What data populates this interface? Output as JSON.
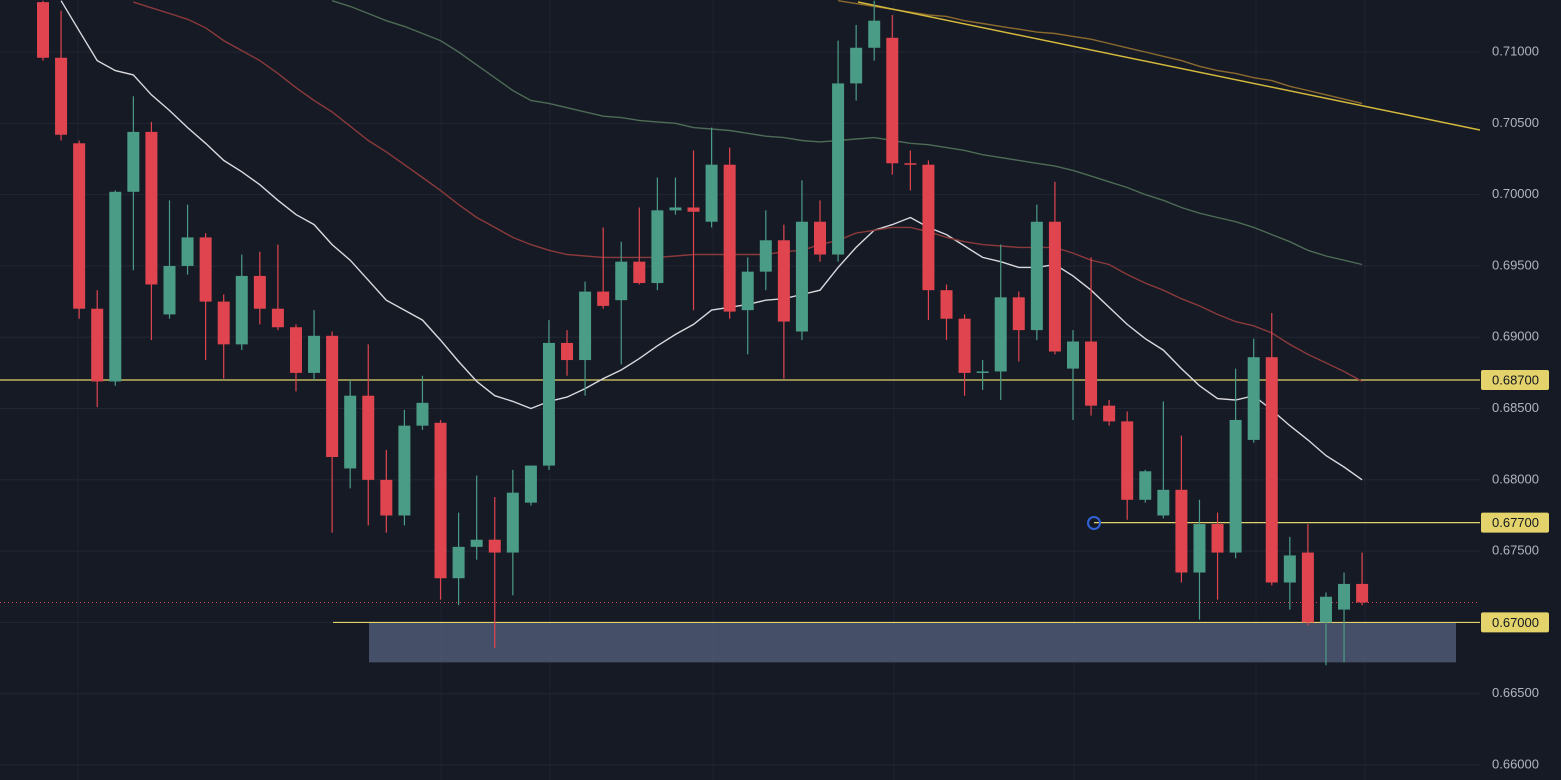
{
  "chart_data": {
    "type": "candlestick",
    "up_color": "#4b9c86",
    "down_color": "#e0454f",
    "grid": true,
    "ylim": [
      0.65895,
      0.71365
    ],
    "yticks": [
      {
        "value": 0.66,
        "label": "0.66000"
      },
      {
        "value": 0.665,
        "label": "0.66500"
      },
      {
        "value": 0.67,
        "label": "0.67000"
      },
      {
        "value": 0.675,
        "label": "0.67500"
      },
      {
        "value": 0.68,
        "label": "0.68000"
      },
      {
        "value": 0.685,
        "label": "0.68500"
      },
      {
        "value": 0.69,
        "label": "0.69000"
      },
      {
        "value": 0.695,
        "label": "0.69500"
      },
      {
        "value": 0.7,
        "label": "0.70000"
      },
      {
        "value": 0.705,
        "label": "0.70500"
      },
      {
        "value": 0.71,
        "label": "0.71000"
      }
    ],
    "open": [
      0.7135,
      0.7096,
      0.7036,
      0.692,
      0.6869,
      0.7002,
      0.7044,
      0.6916,
      0.695,
      0.697,
      0.6925,
      0.6895,
      0.6943,
      0.692,
      0.6907,
      0.6875,
      0.6901,
      0.6808,
      0.6859,
      0.68,
      0.6775,
      0.6838,
      0.684,
      0.6731,
      0.6753,
      0.6758,
      0.6749,
      0.6784,
      0.681,
      0.6896,
      0.6884,
      0.6932,
      0.6926,
      0.6953,
      0.6938,
      0.6989,
      0.6991,
      0.6981,
      0.7021,
      0.6919,
      0.6946,
      0.6968,
      0.6904,
      0.6981,
      0.6958,
      0.7078,
      0.7103,
      0.711,
      0.7022,
      0.7021,
      0.6933,
      0.6913,
      0.6875,
      0.6876,
      0.6928,
      0.6905,
      0.6981,
      0.6878,
      0.6897,
      0.6852,
      0.6841,
      0.6786,
      0.6775,
      0.6793,
      0.6735,
      0.6769,
      0.6749,
      0.6828,
      0.6886,
      0.6728,
      0.6749,
      0.67,
      0.6709,
      0.6727
    ],
    "high": [
      0.7136,
      0.7129,
      0.7038,
      0.6933,
      0.7003,
      0.7069,
      0.7051,
      0.6996,
      0.6993,
      0.6973,
      0.693,
      0.6958,
      0.696,
      0.6965,
      0.6909,
      0.6919,
      0.6904,
      0.687,
      0.6895,
      0.6821,
      0.6849,
      0.6873,
      0.6842,
      0.6777,
      0.6803,
      0.6788,
      0.6807,
      0.681,
      0.6912,
      0.6905,
      0.6939,
      0.6977,
      0.6967,
      0.6991,
      0.7012,
      0.7012,
      0.7031,
      0.7047,
      0.7033,
      0.6956,
      0.6989,
      0.6979,
      0.701,
      0.6996,
      0.7108,
      0.7119,
      0.7136,
      0.7126,
      0.7031,
      0.7024,
      0.6937,
      0.6916,
      0.6884,
      0.6965,
      0.6932,
      0.6993,
      0.7009,
      0.6905,
      0.6956,
      0.6856,
      0.6848,
      0.6807,
      0.6855,
      0.6831,
      0.6786,
      0.6777,
      0.6878,
      0.6899,
      0.6917,
      0.676,
      0.6769,
      0.6721,
      0.6735,
      0.6749
    ],
    "low": [
      0.7094,
      0.7038,
      0.6913,
      0.6851,
      0.6866,
      0.6947,
      0.6898,
      0.6913,
      0.6944,
      0.6884,
      0.6871,
      0.6891,
      0.6909,
      0.6905,
      0.6862,
      0.687,
      0.6763,
      0.6794,
      0.6768,
      0.6763,
      0.6768,
      0.6835,
      0.6716,
      0.6712,
      0.6744,
      0.6682,
      0.6719,
      0.6782,
      0.6807,
      0.6873,
      0.6859,
      0.692,
      0.6881,
      0.6937,
      0.6933,
      0.6986,
      0.6919,
      0.6977,
      0.6913,
      0.6888,
      0.6933,
      0.6871,
      0.6898,
      0.6953,
      0.6953,
      0.7066,
      0.7094,
      0.7014,
      0.7003,
      0.6912,
      0.6898,
      0.6859,
      0.6863,
      0.6856,
      0.6883,
      0.6898,
      0.6888,
      0.6842,
      0.6845,
      0.6838,
      0.6772,
      0.6784,
      0.6773,
      0.6728,
      0.6702,
      0.6716,
      0.6745,
      0.6826,
      0.6726,
      0.6709,
      0.6698,
      0.667,
      0.6672,
      0.6712
    ],
    "close": [
      0.7096,
      0.7042,
      0.692,
      0.6869,
      0.7002,
      0.7044,
      0.6937,
      0.695,
      0.697,
      0.6925,
      0.6895,
      0.6943,
      0.692,
      0.6907,
      0.6875,
      0.6901,
      0.6816,
      0.6859,
      0.68,
      0.6775,
      0.6838,
      0.6854,
      0.6731,
      0.6753,
      0.6758,
      0.6749,
      0.6791,
      0.681,
      0.6896,
      0.6884,
      0.6932,
      0.6922,
      0.6953,
      0.6938,
      0.6989,
      0.6991,
      0.6988,
      0.7021,
      0.6918,
      0.6946,
      0.6968,
      0.6911,
      0.6981,
      0.6958,
      0.7078,
      0.7103,
      0.7122,
      0.7022,
      0.7021,
      0.6933,
      0.6913,
      0.6875,
      0.6876,
      0.6928,
      0.6905,
      0.6981,
      0.689,
      0.6897,
      0.6852,
      0.6841,
      0.6786,
      0.6806,
      0.6793,
      0.6735,
      0.6769,
      0.6749,
      0.6842,
      0.6886,
      0.6728,
      0.6747,
      0.67,
      0.6718,
      0.6727,
      0.6714
    ],
    "overlays": [
      {
        "color": "#d9d9de",
        "values": [
          null,
          0.7136,
          0.7115,
          0.7094,
          0.7087,
          0.7084,
          0.707,
          0.7059,
          0.7047,
          0.7036,
          0.7024,
          0.7016,
          0.7007,
          0.6996,
          0.6986,
          0.6979,
          0.6965,
          0.6954,
          0.694,
          0.6926,
          0.6919,
          0.6912,
          0.6898,
          0.6883,
          0.6869,
          0.6859,
          0.6855,
          0.685,
          0.6855,
          0.6858,
          0.6864,
          0.6871,
          0.6877,
          0.6885,
          0.6894,
          0.6902,
          0.6909,
          0.6919,
          0.6921,
          0.6923,
          0.6926,
          0.6927,
          0.693,
          0.6933,
          0.6949,
          0.6963,
          0.6975,
          0.6979,
          0.6984,
          0.6977,
          0.6972,
          0.6964,
          0.6956,
          0.6953,
          0.6949,
          0.6949,
          0.6951,
          0.6943,
          0.6933,
          0.6921,
          0.6909,
          0.6899,
          0.6891,
          0.6878,
          0.6866,
          0.6857,
          0.6856,
          0.6859,
          0.6849,
          0.6838,
          0.6828,
          0.6817,
          0.6809,
          0.68
        ]
      },
      {
        "color": "#8a3a3a",
        "values": [
          null,
          null,
          null,
          null,
          null,
          0.7135,
          0.7131,
          0.7127,
          0.7123,
          0.7117,
          0.7108,
          0.7101,
          0.7094,
          0.7085,
          0.7075,
          0.7066,
          0.7058,
          0.7048,
          0.7038,
          0.703,
          0.7021,
          0.7012,
          0.7003,
          0.6993,
          0.6984,
          0.6977,
          0.697,
          0.6965,
          0.6961,
          0.6958,
          0.6957,
          0.6956,
          0.6956,
          0.6956,
          0.6956,
          0.6957,
          0.6958,
          0.6958,
          0.6958,
          0.6958,
          0.6958,
          0.696,
          0.6961,
          0.6965,
          0.6968,
          0.6973,
          0.6975,
          0.6977,
          0.6977,
          0.6974,
          0.697,
          0.6967,
          0.6965,
          0.6964,
          0.6963,
          0.6963,
          0.6963,
          0.6959,
          0.6954,
          0.6951,
          0.6944,
          0.6938,
          0.6933,
          0.6927,
          0.6922,
          0.6916,
          0.6911,
          0.6908,
          0.6903,
          0.6895,
          0.6888,
          0.6882,
          0.6876,
          0.6869
        ]
      },
      {
        "color": "#4d6b55",
        "values": [
          null,
          null,
          null,
          null,
          null,
          null,
          null,
          null,
          null,
          null,
          null,
          null,
          null,
          null,
          null,
          null,
          0.7136,
          0.7132,
          0.7127,
          0.7122,
          0.7118,
          0.7113,
          0.7108,
          0.71,
          0.7091,
          0.7082,
          0.7073,
          0.7066,
          0.7064,
          0.7061,
          0.7058,
          0.7055,
          0.7054,
          0.7052,
          0.7051,
          0.705,
          0.7047,
          0.7046,
          0.7045,
          0.7043,
          0.7041,
          0.704,
          0.7038,
          0.7037,
          0.7038,
          0.7039,
          0.704,
          0.7038,
          0.7036,
          0.7035,
          0.7033,
          0.7031,
          0.7028,
          0.7026,
          0.7024,
          0.7022,
          0.702,
          0.7017,
          0.7013,
          0.7009,
          0.7005,
          0.7,
          0.6996,
          0.6991,
          0.6987,
          0.6984,
          0.6981,
          0.6977,
          0.6972,
          0.6967,
          0.6961,
          0.6957,
          0.6954,
          0.6951
        ]
      },
      {
        "color": "#8c6a2e",
        "values": [
          null,
          null,
          null,
          null,
          null,
          null,
          null,
          null,
          null,
          null,
          null,
          null,
          null,
          null,
          null,
          null,
          null,
          null,
          null,
          null,
          null,
          null,
          null,
          null,
          null,
          null,
          null,
          null,
          null,
          null,
          null,
          null,
          null,
          null,
          null,
          null,
          null,
          null,
          null,
          null,
          null,
          null,
          null,
          null,
          0.7136,
          0.7134,
          0.7132,
          0.713,
          0.7128,
          0.7126,
          0.7125,
          0.7122,
          0.712,
          0.7118,
          0.7116,
          0.7114,
          0.7113,
          0.7111,
          0.7109,
          0.7106,
          0.7103,
          0.71,
          0.7097,
          0.7094,
          0.709,
          0.7087,
          0.7085,
          0.7082,
          0.708,
          0.7076,
          0.7073,
          0.707,
          0.7067,
          0.7064
        ]
      }
    ],
    "levels": [
      {
        "value": 0.687,
        "label": "0.68700"
      },
      {
        "value": 0.677,
        "label": "0.67700"
      },
      {
        "value": 0.67,
        "label": "0.67000"
      }
    ],
    "level_color": "#e3d36a",
    "zone": [
      0.6672,
      0.67
    ],
    "zone_color": "#4a5670"
  }
}
